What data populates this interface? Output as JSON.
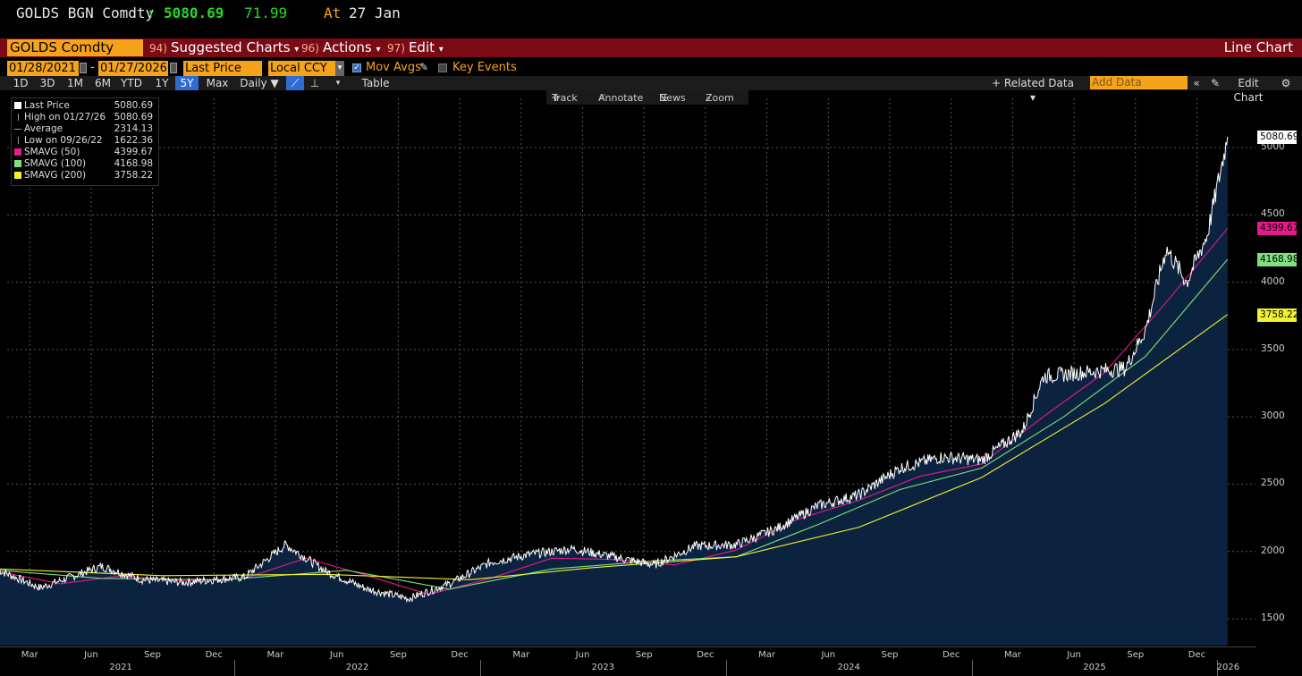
{
  "quote": {
    "ticker": "GOLDS BGN Comdty",
    "arrow": "↑",
    "price": "5080.69",
    "change": "71.99",
    "time_prefix": "At",
    "time": "27 Jan"
  },
  "menu": {
    "ticker_field": "GOLDS Comdty",
    "items": [
      {
        "num": "94)",
        "label": "Suggested Charts",
        "caret": "▾"
      },
      {
        "num": "96)",
        "label": "Actions",
        "caret": "▾"
      },
      {
        "num": "97)",
        "label": "Edit",
        "caret": "▾"
      }
    ],
    "chart_type": "Line Chart"
  },
  "settings": {
    "start_date": "01/28/2021",
    "dash": "-",
    "end_date": "01/27/2026",
    "field": "Last Price",
    "currency": "Local CCY",
    "mov_avgs": "Mov Avgs",
    "key_events": "Key Events"
  },
  "periods": [
    "1D",
    "3D",
    "1M",
    "6M",
    "YTD",
    "1Y",
    "5Y",
    "Max"
  ],
  "selected_period": "5Y",
  "frequency": "Daily ▼",
  "table_label": "Table",
  "related_data": "+ Related Data ▾",
  "add_data_placeholder": "Add Data",
  "edit_chart": "Edit Chart",
  "tools": [
    "Track",
    "Annotate",
    "News",
    "Zoom"
  ],
  "legend": [
    {
      "label": "Last Price",
      "value": "5080.69",
      "color": "#ffffff"
    },
    {
      "label": "High on 01/27/26",
      "value": "5080.69",
      "color": "#aaaaaa"
    },
    {
      "label": "Average",
      "value": "2314.13",
      "color": "#aaaaaa"
    },
    {
      "label": "Low on 09/26/22",
      "value": "1622.36",
      "color": "#aaaaaa"
    },
    {
      "label": "SMAVG (50)",
      "value": "4399.67",
      "color": "#e6198c"
    },
    {
      "label": "SMAVG (100)",
      "value": "4168.98",
      "color": "#7fe07f"
    },
    {
      "label": "SMAVG (200)",
      "value": "3758.22",
      "color": "#f2f230"
    }
  ],
  "chart_data": {
    "type": "line",
    "ylim": [
      1300,
      5250
    ],
    "y_ticks": [
      1500,
      2000,
      2500,
      3000,
      3500,
      4000,
      4500,
      5000
    ],
    "month_ticks": [
      "Mar",
      "Jun",
      "Sep",
      "Dec",
      "Mar",
      "Jun",
      "Sep",
      "Dec",
      "Mar",
      "Jun",
      "Sep",
      "Dec",
      "Mar",
      "Jun",
      "Sep",
      "Dec",
      "Mar",
      "Jun",
      "Sep",
      "Dec"
    ],
    "year_labels": [
      "2021",
      "2022",
      "2023",
      "2024",
      "2025",
      "2026"
    ],
    "last_values": {
      "price": "5080.69",
      "smavg50": "4399.67",
      "smavg100": "4168.98",
      "smavg200": "3758.22"
    },
    "series": [
      {
        "name": "Last Price",
        "color": "#ffffff",
        "x": [
          "2021-01",
          "2021-03",
          "2021-06",
          "2021-08",
          "2021-10",
          "2022-01",
          "2022-03",
          "2022-05",
          "2022-07",
          "2022-09",
          "2022-11",
          "2023-01",
          "2023-03",
          "2023-05",
          "2023-07",
          "2023-09",
          "2023-11",
          "2024-01",
          "2024-03",
          "2024-05",
          "2024-07",
          "2024-09",
          "2024-11",
          "2025-01",
          "2025-03",
          "2025-04",
          "2025-06",
          "2025-08",
          "2025-09",
          "2025-10",
          "2025-11",
          "2025-12",
          "2026-01"
        ],
        "values": [
          1860,
          1730,
          1890,
          1790,
          1770,
          1810,
          2050,
          1850,
          1720,
          1650,
          1760,
          1920,
          1980,
          2020,
          1960,
          1900,
          2040,
          2050,
          2170,
          2340,
          2420,
          2620,
          2700,
          2680,
          2900,
          3300,
          3330,
          3360,
          3650,
          4250,
          4000,
          4350,
          5080
        ]
      },
      {
        "name": "SMAVG (50)",
        "color": "#e6198c",
        "x": [
          "2021-01",
          "2021-04",
          "2021-07",
          "2021-10",
          "2022-01",
          "2022-04",
          "2022-07",
          "2022-10",
          "2023-01",
          "2023-04",
          "2023-07",
          "2023-10",
          "2024-01",
          "2024-04",
          "2024-07",
          "2024-10",
          "2025-01",
          "2025-04",
          "2025-07",
          "2025-10",
          "2026-01"
        ],
        "values": [
          1850,
          1760,
          1820,
          1780,
          1800,
          1950,
          1820,
          1680,
          1800,
          1950,
          1940,
          1900,
          2010,
          2240,
          2380,
          2560,
          2650,
          3000,
          3330,
          3850,
          4400
        ]
      },
      {
        "name": "SMAVG (100)",
        "color": "#7fe07f",
        "x": [
          "2021-01",
          "2021-06",
          "2021-12",
          "2022-06",
          "2022-11",
          "2023-04",
          "2023-09",
          "2024-01",
          "2024-05",
          "2024-09",
          "2025-01",
          "2025-05",
          "2025-09",
          "2026-01"
        ],
        "values": [
          1860,
          1800,
          1790,
          1860,
          1720,
          1870,
          1930,
          1960,
          2200,
          2460,
          2620,
          3000,
          3450,
          4170
        ]
      },
      {
        "name": "SMAVG (200)",
        "color": "#f2f230",
        "x": [
          "2021-01",
          "2021-09",
          "2022-05",
          "2022-12",
          "2023-06",
          "2024-01",
          "2024-07",
          "2025-01",
          "2025-07",
          "2026-01"
        ],
        "values": [
          1870,
          1820,
          1830,
          1790,
          1880,
          1960,
          2180,
          2550,
          3100,
          3760
        ]
      }
    ]
  }
}
